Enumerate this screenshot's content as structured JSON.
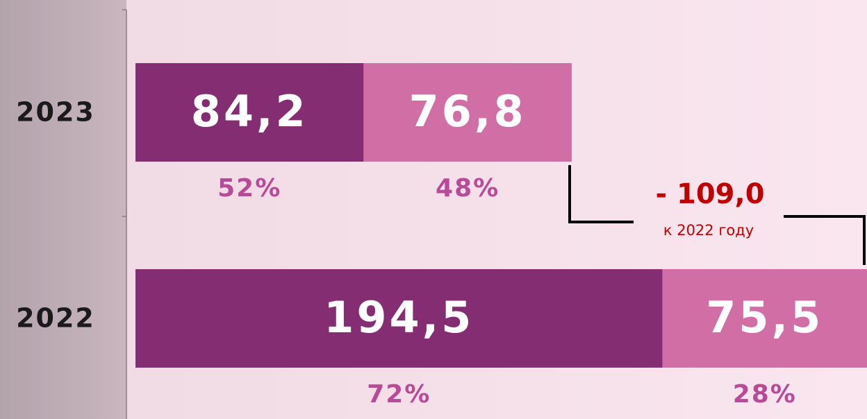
{
  "chart_data": {
    "type": "stacked_barh",
    "categories": [
      "2023",
      "2022"
    ],
    "series": [
      {
        "color": "#852d73",
        "values": [
          84.2,
          194.5
        ],
        "value_labels": [
          "84,2",
          "194,5"
        ],
        "share_labels": [
          "52%",
          "72%"
        ]
      },
      {
        "color": "#d06ea5",
        "values": [
          76.8,
          75.5
        ],
        "value_labels": [
          "76,8",
          "75,5"
        ],
        "share_labels": [
          "48%",
          "28%"
        ]
      }
    ],
    "xlim": [
      0,
      270
    ],
    "annotation": {
      "value": "- 109,0",
      "text": "к 2022 году"
    }
  }
}
